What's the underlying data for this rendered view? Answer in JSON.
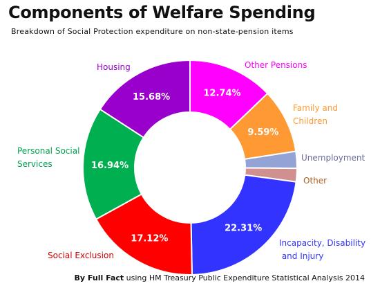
{
  "credit": {
    "by": "By Full Fact",
    "rest": "using HM Treasury Public Expenditure Statistical Analysis 2014"
  },
  "chart_data": {
    "type": "pie",
    "title": "Components of Welfare Spending",
    "subtitle": "Breakdown of Social Protection expenditure on non-state-pension items",
    "donut": true,
    "slices": [
      {
        "label": "Other Pensions",
        "value": 12.74,
        "display": "12.74%",
        "color": "#ff00ff"
      },
      {
        "label": "Family and Children",
        "value": 9.59,
        "display": "9.59%",
        "color": "#ff9933"
      },
      {
        "label": "Unemployment",
        "value": 2.5,
        "display": "",
        "color": "#94a3d6"
      },
      {
        "label": "Other",
        "value": 2.0,
        "display": "",
        "color": "#d09090"
      },
      {
        "label": "Incapacity, Disability and Injury",
        "value": 22.31,
        "display": "22.31%",
        "color": "#3333ff"
      },
      {
        "label": "Social Exclusion",
        "value": 17.12,
        "display": "17.12%",
        "color": "#ff0000"
      },
      {
        "label": "Personal Social Services",
        "value": 16.94,
        "display": "16.94%",
        "color": "#00b050"
      },
      {
        "label": "Housing",
        "value": 15.68,
        "display": "15.68%",
        "color": "#9900cc"
      }
    ]
  }
}
